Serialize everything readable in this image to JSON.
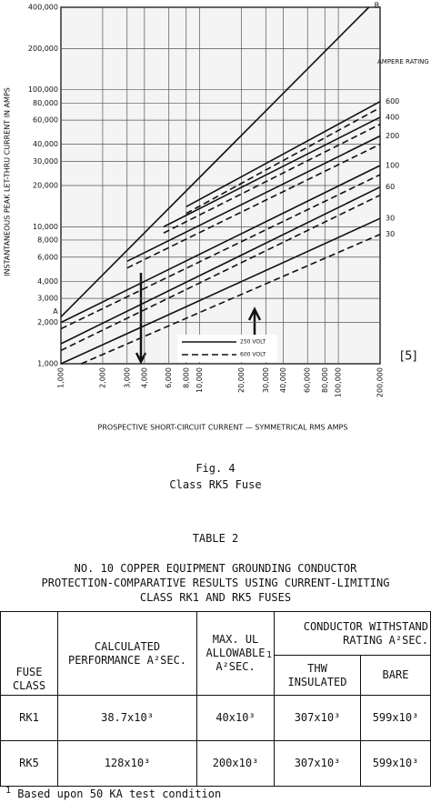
{
  "chart_data": {
    "type": "line",
    "log_x": true,
    "log_y": true,
    "grid": true,
    "ylabel": "INSTANTANEOUS PEAK LET-THRU CURRENT IN AMPS",
    "xlabel": "PROSPECTIVE SHORT-CIRCUIT CURRENT — SYMMETRICAL RMS AMPS",
    "rating_title": "AMPERE RATING",
    "xlim": [
      1000,
      200000
    ],
    "ylim": [
      1000,
      400000
    ],
    "xticks": [
      {
        "value": 1000,
        "label": "1,000"
      },
      {
        "value": 2000,
        "label": "2,000"
      },
      {
        "value": 3000,
        "label": "3,000"
      },
      {
        "value": 4000,
        "label": "4,000"
      },
      {
        "value": 6000,
        "label": "6,000"
      },
      {
        "value": 8000,
        "label": "8,000"
      },
      {
        "value": 10000,
        "label": "10,000"
      },
      {
        "value": 20000,
        "label": "20,000"
      },
      {
        "value": 30000,
        "label": "30,000"
      },
      {
        "value": 40000,
        "label": "40,000"
      },
      {
        "value": 60000,
        "label": "60,000"
      },
      {
        "value": 80000,
        "label": "80,000"
      },
      {
        "value": 100000,
        "label": "100,000"
      },
      {
        "value": 200000,
        "label": "200,000"
      }
    ],
    "yticks": [
      {
        "value": 1000,
        "label": "1,000"
      },
      {
        "value": 2000,
        "label": "2,000"
      },
      {
        "value": 3000,
        "label": "3,000"
      },
      {
        "value": 4000,
        "label": "4,000"
      },
      {
        "value": 6000,
        "label": "6,000"
      },
      {
        "value": 8000,
        "label": "8,000"
      },
      {
        "value": 10000,
        "label": "10,000"
      },
      {
        "value": 20000,
        "label": "20,000"
      },
      {
        "value": 30000,
        "label": "30,000"
      },
      {
        "value": 40000,
        "label": "40,000"
      },
      {
        "value": 60000,
        "label": "60,000"
      },
      {
        "value": 80000,
        "label": "80,000"
      },
      {
        "value": 100000,
        "label": "100,000"
      },
      {
        "value": 200000,
        "label": "200,000"
      },
      {
        "value": 400000,
        "label": "400,000"
      }
    ],
    "series": [
      {
        "name": "B",
        "start_label": "A",
        "color": "#111",
        "dash": false,
        "x": [
          1000,
          166000
        ],
        "values": [
          2200,
          400000
        ]
      },
      {
        "name": "600",
        "color": "#111",
        "dash": false,
        "x": [
          8000,
          200000
        ],
        "values": [
          14000,
          82000
        ]
      },
      {
        "color": "#111",
        "dash": true,
        "x": [
          8000,
          200000
        ],
        "values": [
          12500,
          74000
        ]
      },
      {
        "name": "400",
        "color": "#111",
        "dash": false,
        "x": [
          5500,
          200000
        ],
        "values": [
          10000,
          63000
        ]
      },
      {
        "color": "#111",
        "dash": true,
        "x": [
          5500,
          200000
        ],
        "values": [
          9000,
          56000
        ]
      },
      {
        "name": "200",
        "color": "#111",
        "dash": false,
        "x": [
          3000,
          200000
        ],
        "values": [
          5600,
          46000
        ]
      },
      {
        "color": "#111",
        "dash": true,
        "x": [
          3000,
          200000
        ],
        "values": [
          5000,
          40000
        ]
      },
      {
        "name": "100",
        "color": "#111",
        "dash": false,
        "x": [
          1000,
          200000
        ],
        "values": [
          2000,
          28000
        ]
      },
      {
        "color": "#111",
        "dash": true,
        "x": [
          1000,
          200000
        ],
        "values": [
          1800,
          24000
        ]
      },
      {
        "name": "60",
        "color": "#111",
        "dash": false,
        "x": [
          1000,
          200000
        ],
        "values": [
          1400,
          19500
        ]
      },
      {
        "color": "#111",
        "dash": true,
        "x": [
          1000,
          200000
        ],
        "values": [
          1250,
          17000
        ]
      },
      {
        "name": "30",
        "color": "#111",
        "dash": false,
        "x": [
          1000,
          200000
        ],
        "values": [
          1000,
          11500
        ]
      },
      {
        "name": "30",
        "color": "#111",
        "dash": true,
        "x": [
          1400,
          200000
        ],
        "values": [
          1000,
          8800
        ]
      }
    ],
    "legend": [
      {
        "label": "250 VOLT",
        "dash": false
      },
      {
        "label": "600 VOLT",
        "dash": true
      }
    ],
    "side_note": "[5]"
  },
  "caption": {
    "fig": "Fig. 4",
    "text": "Class RK5 Fuse"
  },
  "table": {
    "label": "TABLE 2",
    "title": [
      "NO. 10 COPPER EQUIPMENT GROUNDING CONDUCTOR",
      "PROTECTION-COMPARATIVE RESULTS USING CURRENT-LIMITING",
      "CLASS RK1 AND RK5 FUSES"
    ],
    "header": {
      "fuse": "FUSE CLASS",
      "calc": "CALCULATED PERFORMANCE A²SEC.",
      "max": "MAX. UL ALLOWABLE A²SEC.",
      "max_note": "1",
      "group": "CONDUCTOR WITHSTAND RATING A²SEC.",
      "thw": "THW INSULATED",
      "bare": "BARE"
    },
    "rows": [
      [
        "RK1",
        "38.7x10³",
        "40x10³",
        "307x10³",
        "599x10³"
      ],
      [
        "RK5",
        "128x10³",
        "200x10³",
        "307x10³",
        "599x10³"
      ]
    ]
  },
  "footnote": {
    "mark": "1",
    "text": "Based upon 50 KA test condition"
  }
}
